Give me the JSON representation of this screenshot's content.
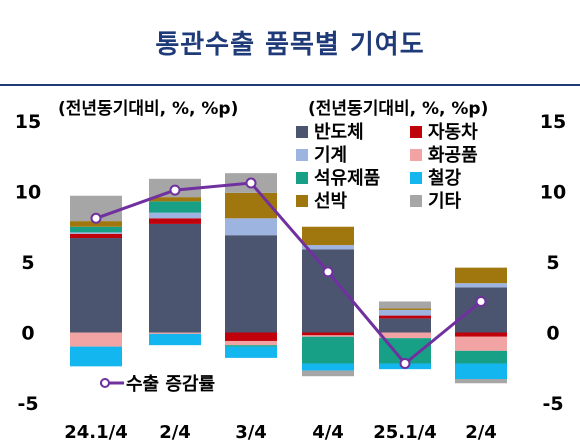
{
  "title": "통관수출 품목별 기여도",
  "unit_left": "(전년동기대비, %, %p)",
  "unit_right": "(전년동기대비, %, %p)",
  "colors": {
    "title": "#1f3a78",
    "semiconductor": "#4b5570",
    "machinery": "#9db3e0",
    "petroleum": "#17a085",
    "ship": "#a0770e",
    "auto": "#c0000a",
    "chemical": "#f2a3a3",
    "steel": "#14b6f0",
    "other": "#a6a6a6",
    "export_line": "#7030a0"
  },
  "chart_data": {
    "type": "bar",
    "stacked": true,
    "categories": [
      "24.1/4",
      "2/4",
      "3/4",
      "4/4",
      "25.1/4",
      "2/4"
    ],
    "ylim": [
      -5,
      15
    ],
    "yticks": [
      15,
      10,
      5,
      0,
      -5
    ],
    "series": [
      {
        "name": "반도체",
        "key": "semiconductor",
        "values": [
          6.7,
          7.7,
          6.9,
          5.9,
          1.0,
          3.2
        ]
      },
      {
        "name": "자동차",
        "key": "auto",
        "values": [
          0.3,
          0.4,
          -0.6,
          -0.2,
          0.2,
          -0.3
        ]
      },
      {
        "name": "기계",
        "key": "machinery",
        "values": [
          0.1,
          0.4,
          1.2,
          0.3,
          0.4,
          0.3
        ]
      },
      {
        "name": "화공품",
        "key": "chemical",
        "values": [
          -1.0,
          -0.1,
          -0.3,
          -0.1,
          -0.4,
          -1.0
        ]
      },
      {
        "name": "석유제품",
        "key": "petroleum",
        "values": [
          0.4,
          0.8,
          -0.1,
          -1.9,
          -1.8,
          -0.9
        ]
      },
      {
        "name": "철강",
        "key": "steel",
        "values": [
          -1.4,
          -0.8,
          -0.8,
          -0.5,
          -0.4,
          -1.1
        ]
      },
      {
        "name": "선박",
        "key": "ship",
        "values": [
          0.4,
          0.3,
          1.8,
          1.3,
          0.1,
          1.1
        ]
      },
      {
        "name": "기타",
        "key": "other",
        "values": [
          1.8,
          1.3,
          1.4,
          -0.4,
          0.5,
          -0.3
        ]
      }
    ],
    "line": {
      "name": "수출 증감률",
      "values": [
        8.1,
        10.1,
        10.6,
        4.3,
        -2.2,
        2.2
      ]
    },
    "legend_items": [
      {
        "label": "반도체",
        "key": "semiconductor"
      },
      {
        "label": "자동차",
        "key": "auto"
      },
      {
        "label": "기계",
        "key": "machinery"
      },
      {
        "label": "화공품",
        "key": "chemical"
      },
      {
        "label": "석유제품",
        "key": "petroleum"
      },
      {
        "label": "철강",
        "key": "steel"
      },
      {
        "label": "선박",
        "key": "ship"
      },
      {
        "label": "기타",
        "key": "other"
      }
    ],
    "legend_line_label": "수출 증감률",
    "legend_position": "top-right"
  }
}
